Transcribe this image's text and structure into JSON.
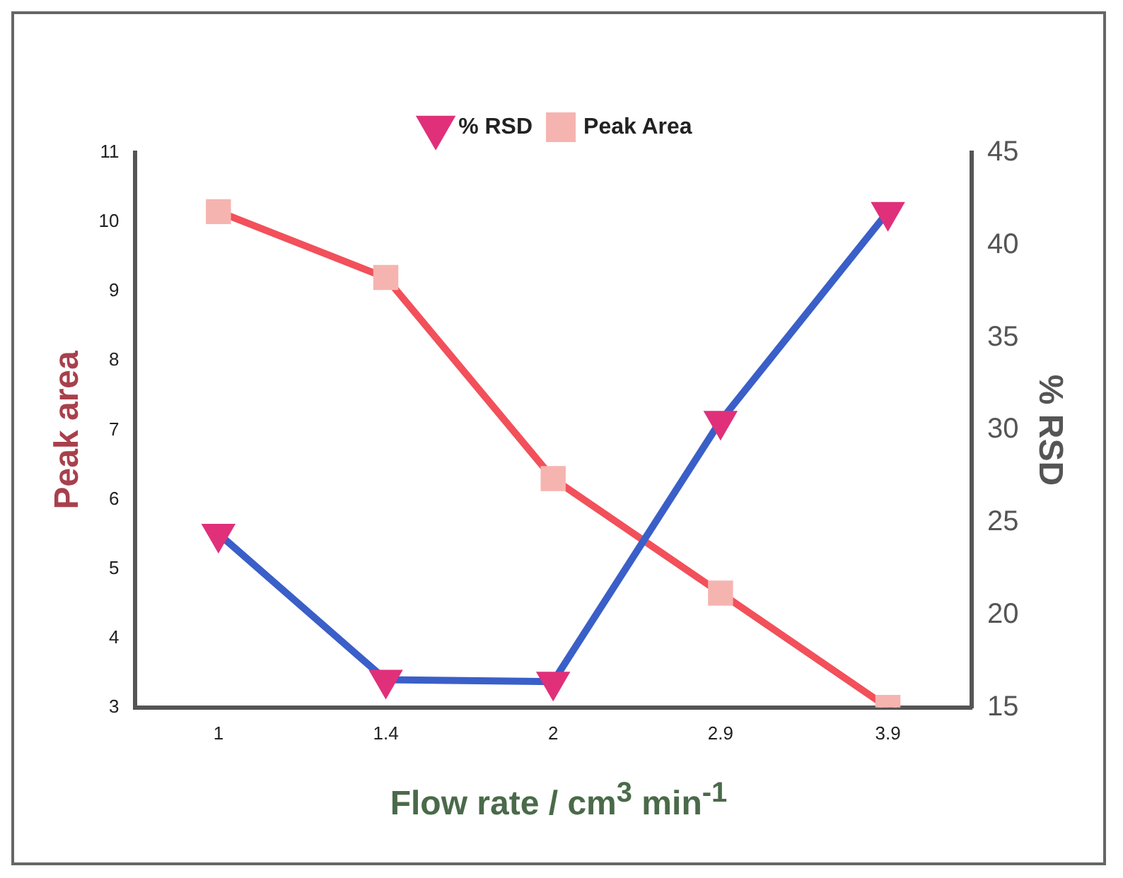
{
  "chart_data": {
    "type": "line",
    "xlabel": "Flow rate / cm$^{3}$ min$^{-1}$",
    "ylabel": "Peak area",
    "y2label": "% RSD",
    "categories": [
      "1",
      "1.4",
      "2",
      "2.9",
      "3.9"
    ],
    "series": [
      {
        "name": "% RSD",
        "color": "#3a5fc8",
        "colors": [
          "#e0307a",
          "#e0307a",
          "#e0307a",
          "#e0307a",
          "#e0307a"
        ],
        "marker": "triangle",
        "axis": "y2",
        "values": [
          24.4,
          16.5,
          16.4,
          30.5,
          41.8
        ]
      },
      {
        "name": "Peak Area",
        "color": "#f2505a",
        "colors": [
          "#f6b4b0",
          "#f6b4b0",
          "#f6b4b0",
          "#f6b4b0",
          "#f6b4b0"
        ],
        "marker": "square",
        "values": [
          10.15,
          9.2,
          6.3,
          4.65,
          3.0
        ]
      }
    ],
    "ylim": [
      3,
      11
    ],
    "yticks": [
      3,
      4,
      5,
      6,
      7,
      8,
      9,
      10,
      11
    ],
    "y2lim": [
      15,
      45
    ],
    "y2ticks": [
      15,
      20,
      25,
      30,
      35,
      40,
      45
    ],
    "legend": "top",
    "grid": false
  }
}
